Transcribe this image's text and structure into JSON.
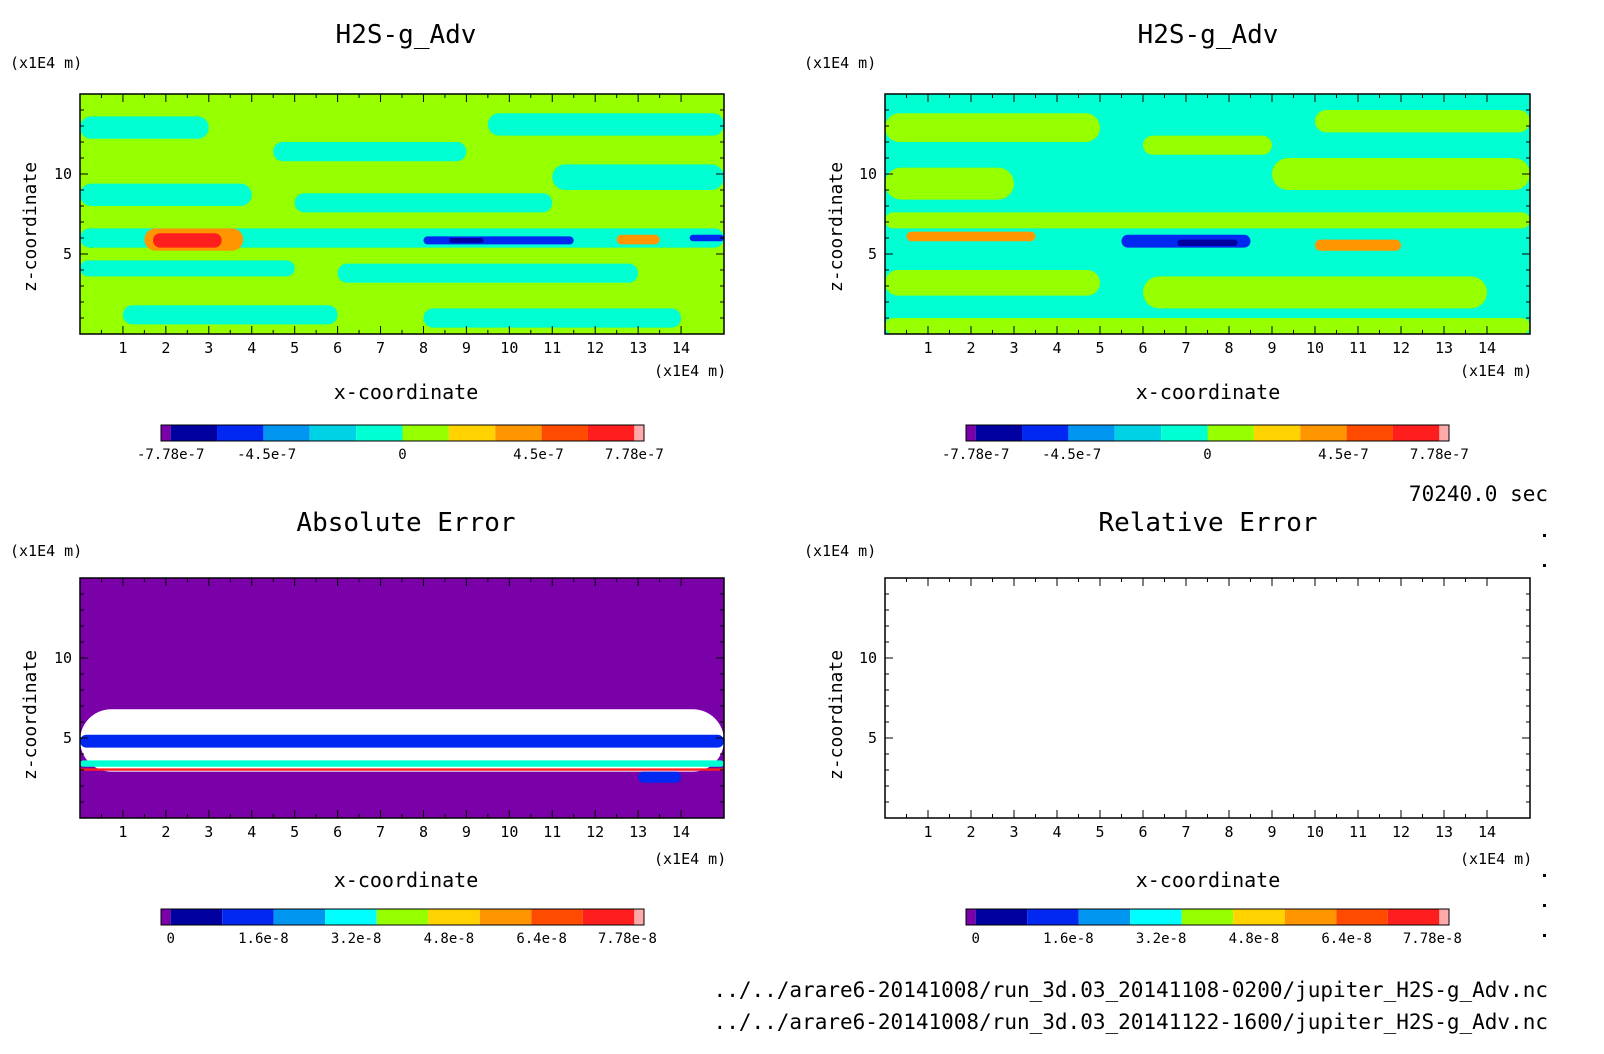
{
  "timestamp": "70240.0 sec",
  "files": [
    "../../arare6-20141008/run_3d.03_20141108-0200/jupiter_H2S-g_Adv.nc",
    "../../arare6-20141008/run_3d.03_20141122-1600/jupiter_H2S-g_Adv.nc"
  ],
  "chart_data": [
    {
      "type": "heatmap",
      "title": "H2S-g_Adv",
      "xlabel": "x-coordinate",
      "ylabel": "z-coordinate",
      "x_unit": "(x1E4 m)",
      "y_unit": "(x1E4 m)",
      "xlim": [
        0,
        15
      ],
      "ylim": [
        0,
        15
      ],
      "xticks": [
        "1",
        "2",
        "3",
        "4",
        "5",
        "6",
        "7",
        "8",
        "9",
        "10",
        "11",
        "12",
        "13",
        "14"
      ],
      "yticks": [
        "5",
        "10"
      ],
      "colorbar": {
        "ticks": [
          "-7.78e-7",
          "-4.5e-7",
          "0",
          "4.5e-7",
          "7.78e-7"
        ],
        "colors": [
          "#7a00a8",
          "#0000a0",
          "#0028f0",
          "#0096f0",
          "#00d2e6",
          "#00ffd2",
          "#96ff00",
          "#ffd200",
          "#ff9600",
          "#ff4b00",
          "#ff1e1e",
          "#ffaaaa"
        ]
      },
      "regions": [
        {
          "cat": "band-green",
          "zmin": 0,
          "zmax": 15
        },
        {
          "cat": "cyan",
          "x": [
            0,
            3
          ],
          "z": [
            12.2,
            13.6
          ]
        },
        {
          "cat": "cyan",
          "x": [
            4.5,
            9
          ],
          "z": [
            10.8,
            12
          ]
        },
        {
          "cat": "cyan",
          "x": [
            9.5,
            15
          ],
          "z": [
            12.4,
            13.8
          ]
        },
        {
          "cat": "cyan",
          "x": [
            0,
            4
          ],
          "z": [
            8,
            9.4
          ]
        },
        {
          "cat": "cyan",
          "x": [
            5,
            11
          ],
          "z": [
            7.6,
            8.8
          ]
        },
        {
          "cat": "cyan",
          "x": [
            11,
            15
          ],
          "z": [
            9,
            10.6
          ]
        },
        {
          "cat": "cyan",
          "x": [
            0,
            15
          ],
          "z": [
            5.4,
            6.6
          ]
        },
        {
          "cat": "cyan",
          "x": [
            0,
            5
          ],
          "z": [
            3.6,
            4.6
          ]
        },
        {
          "cat": "cyan",
          "x": [
            6,
            13
          ],
          "z": [
            3.2,
            4.4
          ]
        },
        {
          "cat": "cyan",
          "x": [
            1,
            6
          ],
          "z": [
            0.6,
            1.8
          ]
        },
        {
          "cat": "cyan",
          "x": [
            8,
            14
          ],
          "z": [
            0.4,
            1.6
          ]
        },
        {
          "cat": "orange",
          "x": [
            1.5,
            3.8
          ],
          "z": [
            5.2,
            6.6
          ]
        },
        {
          "cat": "red",
          "x": [
            1.7,
            3.3
          ],
          "z": [
            5.4,
            6.3
          ]
        },
        {
          "cat": "orange",
          "x": [
            12.5,
            13.5
          ],
          "z": [
            5.6,
            6.2
          ]
        },
        {
          "cat": "blue",
          "x": [
            8,
            11.5
          ],
          "z": [
            5.6,
            6.1
          ]
        },
        {
          "cat": "navy",
          "x": [
            8.6,
            9.4
          ],
          "z": [
            5.7,
            6.0
          ]
        },
        {
          "cat": "blue",
          "x": [
            14.2,
            15
          ],
          "z": [
            5.8,
            6.2
          ]
        }
      ]
    },
    {
      "type": "heatmap",
      "title": "H2S-g_Adv",
      "xlabel": "x-coordinate",
      "ylabel": "z-coordinate",
      "x_unit": "(x1E4 m)",
      "y_unit": "(x1E4 m)",
      "xlim": [
        0,
        15
      ],
      "ylim": [
        0,
        15
      ],
      "xticks": [
        "1",
        "2",
        "3",
        "4",
        "5",
        "6",
        "7",
        "8",
        "9",
        "10",
        "11",
        "12",
        "13",
        "14"
      ],
      "yticks": [
        "5",
        "10"
      ],
      "colorbar": {
        "ticks": [
          "-7.78e-7",
          "-4.5e-7",
          "0",
          "4.5e-7",
          "7.78e-7"
        ],
        "colors": [
          "#7a00a8",
          "#0000a0",
          "#0028f0",
          "#0096f0",
          "#00d2e6",
          "#00ffd2",
          "#96ff00",
          "#ffd200",
          "#ff9600",
          "#ff4b00",
          "#ff1e1e",
          "#ffaaaa"
        ]
      },
      "regions": [
        {
          "cat": "band-cyan",
          "zmin": 0,
          "zmax": 15
        },
        {
          "cat": "green",
          "x": [
            0,
            5
          ],
          "z": [
            12,
            13.8
          ]
        },
        {
          "cat": "green",
          "x": [
            6,
            9
          ],
          "z": [
            11.2,
            12.4
          ]
        },
        {
          "cat": "green",
          "x": [
            10,
            15
          ],
          "z": [
            12.6,
            14
          ]
        },
        {
          "cat": "green",
          "x": [
            0,
            3
          ],
          "z": [
            8.4,
            10.4
          ]
        },
        {
          "cat": "green",
          "x": [
            9,
            15
          ],
          "z": [
            9,
            11
          ]
        },
        {
          "cat": "green",
          "x": [
            0,
            15
          ],
          "z": [
            6.6,
            7.6
          ]
        },
        {
          "cat": "green",
          "x": [
            0,
            5
          ],
          "z": [
            2.4,
            4
          ]
        },
        {
          "cat": "green",
          "x": [
            6,
            14
          ],
          "z": [
            1.6,
            3.6
          ]
        },
        {
          "cat": "green",
          "x": [
            0,
            15
          ],
          "z": [
            0,
            1
          ]
        },
        {
          "cat": "orange",
          "x": [
            0.5,
            3.5
          ],
          "z": [
            5.8,
            6.4
          ]
        },
        {
          "cat": "orange",
          "x": [
            10,
            12
          ],
          "z": [
            5.2,
            5.9
          ]
        },
        {
          "cat": "blue",
          "x": [
            5.5,
            8.5
          ],
          "z": [
            5.4,
            6.2
          ]
        },
        {
          "cat": "navy",
          "x": [
            6.8,
            8.2
          ],
          "z": [
            5.5,
            5.9
          ]
        }
      ]
    },
    {
      "type": "heatmap",
      "title": "Absolute Error",
      "xlabel": "x-coordinate",
      "ylabel": "z-coordinate",
      "x_unit": "(x1E4 m)",
      "y_unit": "(x1E4 m)",
      "xlim": [
        0,
        15
      ],
      "ylim": [
        0,
        15
      ],
      "xticks": [
        "1",
        "2",
        "3",
        "4",
        "5",
        "6",
        "7",
        "8",
        "9",
        "10",
        "11",
        "12",
        "13",
        "14"
      ],
      "yticks": [
        "5",
        "10"
      ],
      "colorbar": {
        "ticks": [
          "0",
          "1.6e-8",
          "3.2e-8",
          "4.8e-8",
          "6.4e-8",
          "7.78e-8"
        ],
        "colors": [
          "#7a00a8",
          "#0000a0",
          "#0028f0",
          "#0096f0",
          "#00ffff",
          "#96ff00",
          "#ffd200",
          "#ff9600",
          "#ff4b00",
          "#ff1e1e",
          "#ffaaaa"
        ]
      },
      "regions": [
        {
          "cat": "band-purple",
          "zmin": 0,
          "zmax": 15
        },
        {
          "cat": "white",
          "x": [
            0,
            15
          ],
          "z": [
            2.9,
            6.8
          ]
        },
        {
          "cat": "blue",
          "x": [
            0,
            15
          ],
          "z": [
            4.4,
            5.2
          ]
        },
        {
          "cat": "cyan",
          "x": [
            0,
            15
          ],
          "z": [
            3.2,
            3.6
          ]
        },
        {
          "cat": "red",
          "x": [
            0,
            15
          ],
          "z": [
            2.95,
            3.1
          ]
        },
        {
          "cat": "blue",
          "x": [
            13,
            14
          ],
          "z": [
            2.2,
            2.9
          ]
        }
      ]
    },
    {
      "type": "heatmap",
      "title": "Relative Error",
      "xlabel": "x-coordinate",
      "ylabel": "z-coordinate",
      "x_unit": "(x1E4 m)",
      "y_unit": "(x1E4 m)",
      "xlim": [
        0,
        15
      ],
      "ylim": [
        0,
        15
      ],
      "xticks": [
        "1",
        "2",
        "3",
        "4",
        "5",
        "6",
        "7",
        "8",
        "9",
        "10",
        "11",
        "12",
        "13",
        "14"
      ],
      "yticks": [
        "5",
        "10"
      ],
      "colorbar": {
        "ticks": [
          "0",
          "1.6e-8",
          "3.2e-8",
          "4.8e-8",
          "6.4e-8",
          "7.78e-8"
        ],
        "colors": [
          "#7a00a8",
          "#0000a0",
          "#0028f0",
          "#0096f0",
          "#00ffff",
          "#96ff00",
          "#ffd200",
          "#ff9600",
          "#ff4b00",
          "#ff1e1e",
          "#ffaaaa"
        ]
      },
      "regions": []
    }
  ]
}
